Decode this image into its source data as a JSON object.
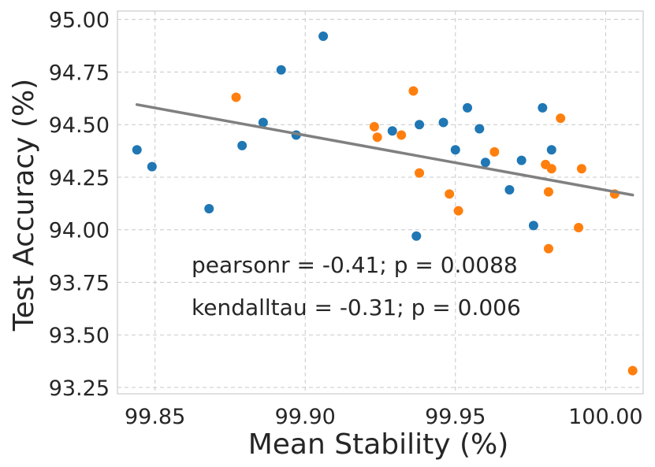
{
  "chart_data": {
    "type": "scatter",
    "title": "",
    "xlabel": "Mean Stability (%)",
    "ylabel": "Test Accuracy (%)",
    "xlim": [
      99.8375,
      100.0125
    ],
    "ylim": [
      93.22,
      95.04
    ],
    "grid": true,
    "xticks": [
      99.85,
      99.9,
      99.95,
      100.0
    ],
    "xtick_labels": [
      "99.85",
      "99.90",
      "99.95",
      "100.00"
    ],
    "yticks": [
      93.25,
      93.5,
      93.75,
      94.0,
      94.25,
      94.5,
      94.75,
      95.0
    ],
    "ytick_labels": [
      "93.25",
      "93.50",
      "93.75",
      "94.00",
      "94.25",
      "94.50",
      "94.75",
      "95.00"
    ],
    "series": [
      {
        "name": "blue",
        "color": "#1f77b4",
        "points": [
          [
            99.844,
            94.38
          ],
          [
            99.849,
            94.3
          ],
          [
            99.868,
            94.1
          ],
          [
            99.879,
            94.4
          ],
          [
            99.886,
            94.51
          ],
          [
            99.892,
            94.76
          ],
          [
            99.897,
            94.45
          ],
          [
            99.906,
            94.92
          ],
          [
            99.929,
            94.47
          ],
          [
            99.938,
            94.5
          ],
          [
            99.937,
            93.97
          ],
          [
            99.946,
            94.51
          ],
          [
            99.95,
            94.38
          ],
          [
            99.954,
            94.58
          ],
          [
            99.958,
            94.48
          ],
          [
            99.96,
            94.32
          ],
          [
            99.968,
            94.19
          ],
          [
            99.972,
            94.33
          ],
          [
            99.976,
            94.02
          ],
          [
            99.979,
            94.58
          ],
          [
            99.982,
            94.38
          ]
        ]
      },
      {
        "name": "orange",
        "color": "#ff7f0e",
        "points": [
          [
            99.877,
            94.63
          ],
          [
            99.923,
            94.49
          ],
          [
            99.924,
            94.44
          ],
          [
            99.932,
            94.45
          ],
          [
            99.936,
            94.66
          ],
          [
            99.938,
            94.27
          ],
          [
            99.948,
            94.17
          ],
          [
            99.951,
            94.09
          ],
          [
            99.963,
            94.37
          ],
          [
            99.98,
            94.31
          ],
          [
            99.981,
            93.91
          ],
          [
            99.981,
            94.18
          ],
          [
            99.982,
            94.29
          ],
          [
            99.985,
            94.53
          ],
          [
            99.991,
            94.01
          ],
          [
            99.992,
            94.29
          ],
          [
            100.003,
            94.17
          ],
          [
            100.009,
            93.33
          ]
        ]
      }
    ],
    "regression_line": {
      "color": "#808080",
      "points": [
        [
          99.844,
          94.595
        ],
        [
          100.009,
          94.165
        ]
      ]
    },
    "annotations": [
      "pearsonr = -0.41; p = 0.0088",
      "kendalltau = -0.31; p = 0.006"
    ]
  }
}
